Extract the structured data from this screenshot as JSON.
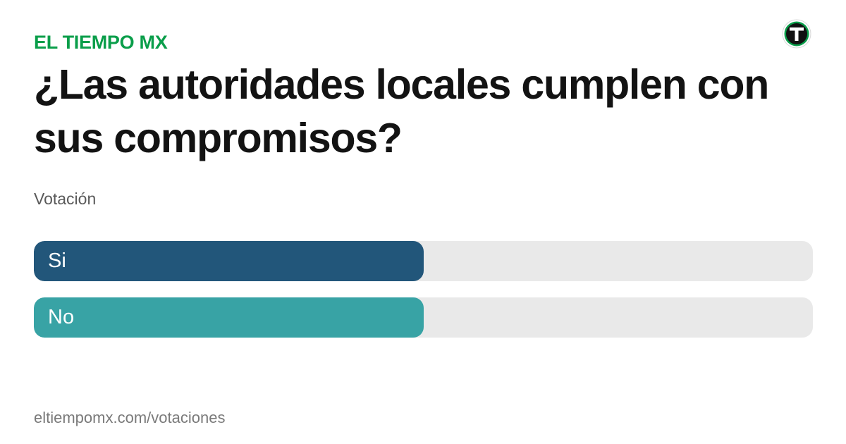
{
  "brand": {
    "name": "EL TIEMPO MX",
    "logo_icon": "el-tiempo-logo-icon",
    "logo_colors": {
      "ring": "#0a9e4a",
      "inner": "#111111",
      "glyph": "#ffffff"
    }
  },
  "poll": {
    "question": "¿Las autoridades locales cumplen con sus compromisos?",
    "subtitle": "Votación",
    "options": [
      {
        "label": "Si",
        "share": 0.5,
        "color": "#22567a"
      },
      {
        "label": "No",
        "share": 0.5,
        "color": "#38a3a5"
      }
    ],
    "track_color": "#e9e9e9"
  },
  "footer": {
    "url": "eltiempomx.com/votaciones"
  }
}
